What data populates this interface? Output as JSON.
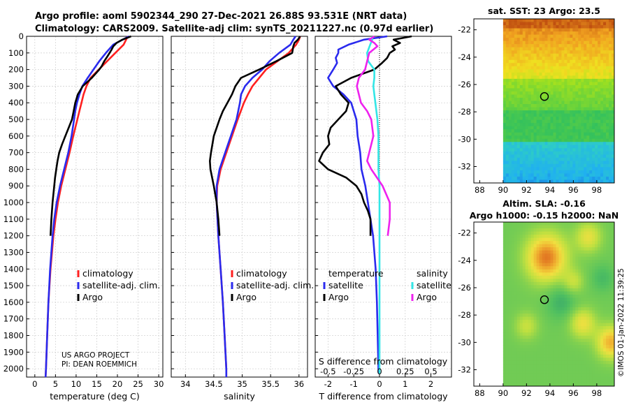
{
  "header": {
    "line1": "Argo profile: aoml 5902344_290 27-Dec-2021 26.88S 93.531E (NRT data)",
    "line2": "Climatology: CARS2009. Satellite-adj clim: synTS_20211227.nc (0.97d earlier)"
  },
  "colors": {
    "climatology": "#ff2020",
    "satellite": "#2a2aee",
    "argo": "#000000",
    "sat_salinity": "#33e6e6",
    "argo_salinity": "#ee22ee"
  },
  "legend": {
    "climatology": "climatology",
    "satellite_adj": "satellite-adj. clim.",
    "argo": "Argo",
    "diff_temperature": "temperature",
    "diff_salinity": "salinity",
    "diff_satellite": "satellite",
    "diff_argo": "Argo"
  },
  "credits": {
    "line1": "US ARGO PROJECT",
    "line2": "PI: DEAN ROEMMICH"
  },
  "watermark": "©IMOS 01-Jan-2022 11:39:25",
  "chart_data": [
    {
      "type": "line",
      "id": "temperature",
      "xlabel": "temperature (deg C)",
      "ylabel": "",
      "xlim": [
        -2,
        31
      ],
      "ylim": [
        2050,
        0
      ],
      "xticks": [
        0,
        5,
        10,
        15,
        20,
        25,
        30
      ],
      "xtick_labels": [
        "0",
        "5",
        "10",
        "15",
        "20",
        "25",
        "30"
      ],
      "yticks": [
        0,
        100,
        200,
        300,
        400,
        500,
        600,
        700,
        800,
        900,
        1000,
        1100,
        1200,
        1300,
        1400,
        1500,
        1600,
        1700,
        1800,
        1900,
        2000
      ],
      "grid": true,
      "series": [
        {
          "name": "climatology",
          "color": "#ff2020",
          "depth": [
            0,
            50,
            100,
            150,
            200,
            250,
            300,
            350,
            400,
            450,
            500,
            600,
            700,
            800,
            900,
            1000,
            1100,
            1200,
            1400,
            1600,
            1800,
            2000,
            2050
          ],
          "values": [
            22.5,
            21.5,
            19.5,
            17.5,
            15.5,
            13.5,
            12.5,
            11.8,
            11.3,
            10.8,
            10.3,
            9.3,
            8.4,
            7.4,
            6.4,
            5.6,
            5.0,
            4.5,
            3.8,
            3.3,
            3.0,
            2.7,
            2.6
          ]
        },
        {
          "name": "satellite-adj. clim.",
          "color": "#2a2aee",
          "depth": [
            0,
            50,
            100,
            150,
            200,
            250,
            300,
            350,
            400,
            450,
            500,
            600,
            700,
            800,
            900,
            1000,
            1100,
            1200,
            1400,
            1600,
            1800,
            2000,
            2050
          ],
          "values": [
            22.8,
            19.0,
            17.2,
            15.6,
            14.2,
            12.8,
            11.5,
            10.8,
            10.2,
            9.8,
            9.5,
            8.9,
            8.1,
            7.1,
            6.1,
            5.3,
            4.7,
            4.3,
            3.7,
            3.3,
            3.0,
            2.7,
            2.6
          ]
        },
        {
          "name": "Argo",
          "color": "#000000",
          "depth": [
            0,
            20,
            40,
            60,
            80,
            100,
            120,
            150,
            180,
            200,
            250,
            300,
            350,
            400,
            450,
            500,
            550,
            600,
            650,
            700,
            750,
            800,
            850,
            900,
            1000,
            1100,
            1200
          ],
          "values": [
            23.3,
            21.2,
            19.8,
            19.0,
            18.6,
            18.1,
            17.6,
            16.8,
            16.2,
            15.6,
            13.8,
            11.6,
            10.4,
            9.8,
            9.4,
            9.0,
            8.2,
            7.4,
            6.6,
            5.9,
            5.5,
            5.2,
            4.9,
            4.7,
            4.3,
            4.0,
            3.8
          ]
        }
      ]
    },
    {
      "type": "line",
      "id": "salinity",
      "xlabel": "salinity",
      "xlim": [
        33.75,
        36.15
      ],
      "ylim": [
        2050,
        0
      ],
      "xticks": [
        34,
        34.5,
        35,
        35.5,
        36
      ],
      "xtick_labels": [
        "34",
        "34.5",
        "35",
        "35.5",
        "36"
      ],
      "grid": true,
      "series": [
        {
          "name": "climatology",
          "color": "#ff2020",
          "depth": [
            0,
            20,
            50,
            100,
            150,
            200,
            250,
            300,
            350,
            400,
            500,
            600,
            700,
            800,
            900,
            1000,
            1200,
            1400,
            1600,
            1800,
            2000,
            2050
          ],
          "values": [
            36.02,
            36.0,
            35.95,
            35.82,
            35.62,
            35.42,
            35.3,
            35.18,
            35.1,
            35.03,
            34.92,
            34.82,
            34.72,
            34.62,
            34.56,
            34.55,
            34.58,
            34.62,
            34.66,
            34.69,
            34.72,
            34.72
          ]
        },
        {
          "name": "satellite-adj. clim.",
          "color": "#2a2aee",
          "depth": [
            0,
            20,
            50,
            100,
            150,
            200,
            250,
            300,
            350,
            400,
            500,
            600,
            700,
            800,
            900,
            1000,
            1200,
            1400,
            1600,
            1800,
            2000,
            2050
          ],
          "values": [
            35.94,
            35.9,
            35.85,
            35.65,
            35.48,
            35.35,
            35.18,
            35.05,
            34.98,
            34.96,
            34.9,
            34.8,
            34.7,
            34.6,
            34.55,
            34.55,
            34.58,
            34.62,
            34.66,
            34.69,
            34.72,
            34.72
          ]
        },
        {
          "name": "Argo",
          "color": "#000000",
          "depth": [
            0,
            20,
            40,
            60,
            100,
            150,
            200,
            250,
            300,
            350,
            400,
            450,
            500,
            550,
            600,
            700,
            750,
            800,
            900,
            1000,
            1100,
            1200
          ],
          "values": [
            36.02,
            35.98,
            35.92,
            35.9,
            35.88,
            35.6,
            35.3,
            34.98,
            34.88,
            34.82,
            34.74,
            34.66,
            34.6,
            34.55,
            34.5,
            34.45,
            34.43,
            34.44,
            34.5,
            34.55,
            34.58,
            34.6
          ]
        }
      ],
      "legend_entries": [
        "climatology",
        "satellite-adj. clim.",
        "Argo"
      ]
    },
    {
      "type": "line",
      "id": "difference",
      "xlabel": "T difference from climatology",
      "top_xlabel": "S difference from climatology",
      "xlim": [
        -2.5,
        2.8
      ],
      "ylim": [
        2050,
        0
      ],
      "xticks": [
        -2,
        -1,
        0,
        1,
        2
      ],
      "xtick_labels": [
        "-2",
        "-1",
        "0",
        "1",
        "2"
      ],
      "sticks": [
        -0.5,
        -0.25,
        0,
        0.25,
        0.5
      ],
      "stick_labels": [
        "-0.5",
        "-0.25",
        "0",
        "0.25",
        "0.5"
      ],
      "grid": true,
      "series": [
        {
          "name": "satellite T",
          "color": "#2a2aee",
          "depth": [
            0,
            20,
            50,
            80,
            100,
            130,
            160,
            200,
            250,
            300,
            350,
            400,
            450,
            500,
            600,
            700,
            800,
            900,
            1000,
            1100,
            1200,
            1400,
            1600,
            1800,
            2000,
            2030
          ],
          "values": [
            0.3,
            -0.6,
            -1.2,
            -1.6,
            -1.6,
            -1.7,
            -1.65,
            -1.8,
            -2.0,
            -1.8,
            -1.4,
            -1.1,
            -1.0,
            -0.9,
            -0.85,
            -0.75,
            -0.7,
            -0.55,
            -0.45,
            -0.35,
            -0.25,
            -0.15,
            -0.1,
            -0.07,
            -0.04,
            -0.02
          ]
        },
        {
          "name": "Argo T",
          "color": "#000000",
          "depth": [
            0,
            20,
            40,
            60,
            80,
            100,
            130,
            160,
            200,
            250,
            300,
            350,
            400,
            450,
            500,
            550,
            600,
            650,
            700,
            750,
            800,
            850,
            900,
            950,
            1000,
            1050,
            1100,
            1200
          ],
          "values": [
            1.25,
            0.55,
            0.8,
            0.5,
            0.6,
            0.4,
            0.3,
            0.1,
            -0.2,
            -1.1,
            -1.7,
            -1.5,
            -1.2,
            -1.3,
            -1.6,
            -1.9,
            -2.0,
            -1.95,
            -2.2,
            -2.35,
            -2.0,
            -1.3,
            -0.9,
            -0.7,
            -0.6,
            -0.45,
            -0.35,
            -0.35
          ]
        },
        {
          "name": "satellite S",
          "color": "#33e6e6",
          "depth": [
            0,
            20,
            50,
            100,
            150,
            200,
            250,
            300,
            350,
            400,
            500,
            600,
            700,
            800,
            900,
            1000,
            1200,
            1400,
            1600,
            1800,
            2000,
            2030
          ],
          "values": [
            -0.07,
            -0.07,
            -0.09,
            -0.12,
            -0.11,
            -0.05,
            -0.05,
            -0.06,
            -0.05,
            -0.04,
            -0.02,
            -0.01,
            -0.01,
            -0.01,
            0,
            0,
            0,
            0,
            0,
            0,
            0,
            0
          ]
        },
        {
          "name": "Argo S",
          "color": "#ee22ee",
          "depth": [
            0,
            20,
            40,
            60,
            80,
            100,
            150,
            200,
            250,
            300,
            350,
            400,
            450,
            500,
            600,
            700,
            750,
            800,
            900,
            1000,
            1100,
            1200
          ],
          "values": [
            -0.05,
            -0.1,
            -0.05,
            -0.02,
            -0.06,
            -0.1,
            -0.12,
            -0.14,
            -0.2,
            -0.22,
            -0.2,
            -0.18,
            -0.12,
            -0.08,
            -0.06,
            -0.1,
            -0.12,
            -0.08,
            0.03,
            0.1,
            0.1,
            0.08
          ]
        }
      ],
      "legend_entries": [
        "temperature",
        "salinity",
        "satellite",
        "Argo"
      ]
    },
    {
      "type": "heatmap",
      "id": "sst_map",
      "title": "sat. SST: 23 Argo: 23.5",
      "xlim": [
        87.5,
        99.5
      ],
      "ylim": [
        -33.2,
        -21.2
      ],
      "xticks": [
        88,
        90,
        92,
        94,
        96,
        98
      ],
      "xtick_labels": [
        "88",
        "90",
        "92",
        "94",
        "96",
        "98"
      ],
      "yticks": [
        -22,
        -24,
        -26,
        -28,
        -30,
        -32
      ],
      "ytick_labels": [
        "-22",
        "-24",
        "-26",
        "-28",
        "-30",
        "-32"
      ],
      "data_lon_start": 90,
      "marker": {
        "lon": 93.53,
        "lat": -26.88
      },
      "colorscale": [
        "#1030c0",
        "#20b0f0",
        "#30d0c0",
        "#30c060",
        "#60d040",
        "#a0e020",
        "#f0e020",
        "#f0a020",
        "#c05010"
      ]
    },
    {
      "type": "heatmap",
      "id": "sla_map",
      "title": "Altim. SLA: -0.16",
      "subtitle": "Argo h1000: -0.15 h2000: NaN",
      "xlim": [
        87.5,
        99.5
      ],
      "ylim": [
        -33.2,
        -21.2
      ],
      "xticks": [
        88,
        90,
        92,
        94,
        96,
        98
      ],
      "xtick_labels": [
        "88",
        "90",
        "92",
        "94",
        "96",
        "98"
      ],
      "yticks": [
        -22,
        -24,
        -26,
        -28,
        -30,
        -32
      ],
      "ytick_labels": [
        "-22",
        "-24",
        "-26",
        "-28",
        "-30",
        "-32"
      ],
      "data_lon_start": 90,
      "marker": {
        "lon": 93.53,
        "lat": -26.88
      },
      "colorscale": [
        "#30a070",
        "#50c060",
        "#80d050",
        "#c0e040",
        "#f0e040",
        "#f0b030",
        "#e07020"
      ]
    }
  ]
}
